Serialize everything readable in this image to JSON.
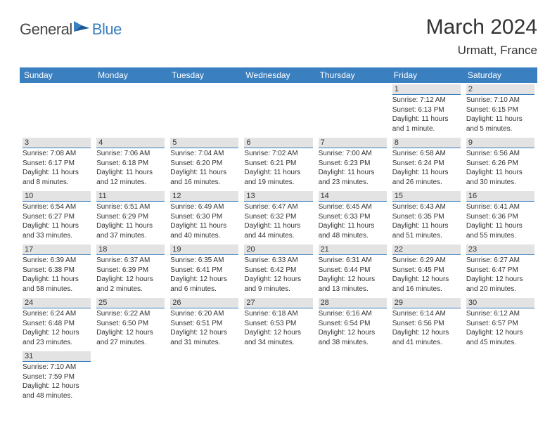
{
  "brand": {
    "text_general": "General",
    "text_blue": "Blue",
    "icon_color": "#3a7fbf",
    "general_color": "#464646"
  },
  "header": {
    "month_title": "March 2024",
    "location": "Urmatt, France"
  },
  "colors": {
    "header_bg": "#3a7fbf",
    "header_text": "#ffffff",
    "day_label_bg": "#e3e3e3",
    "day_label_border": "#3a7fbf",
    "text": "#333333",
    "background": "#ffffff"
  },
  "weekdays": [
    "Sunday",
    "Monday",
    "Tuesday",
    "Wednesday",
    "Thursday",
    "Friday",
    "Saturday"
  ],
  "weeks": [
    [
      null,
      null,
      null,
      null,
      null,
      {
        "n": "1",
        "sunrise": "Sunrise: 7:12 AM",
        "sunset": "Sunset: 6:13 PM",
        "daylight": "Daylight: 11 hours and 1 minute."
      },
      {
        "n": "2",
        "sunrise": "Sunrise: 7:10 AM",
        "sunset": "Sunset: 6:15 PM",
        "daylight": "Daylight: 11 hours and 5 minutes."
      }
    ],
    [
      {
        "n": "3",
        "sunrise": "Sunrise: 7:08 AM",
        "sunset": "Sunset: 6:17 PM",
        "daylight": "Daylight: 11 hours and 8 minutes."
      },
      {
        "n": "4",
        "sunrise": "Sunrise: 7:06 AM",
        "sunset": "Sunset: 6:18 PM",
        "daylight": "Daylight: 11 hours and 12 minutes."
      },
      {
        "n": "5",
        "sunrise": "Sunrise: 7:04 AM",
        "sunset": "Sunset: 6:20 PM",
        "daylight": "Daylight: 11 hours and 16 minutes."
      },
      {
        "n": "6",
        "sunrise": "Sunrise: 7:02 AM",
        "sunset": "Sunset: 6:21 PM",
        "daylight": "Daylight: 11 hours and 19 minutes."
      },
      {
        "n": "7",
        "sunrise": "Sunrise: 7:00 AM",
        "sunset": "Sunset: 6:23 PM",
        "daylight": "Daylight: 11 hours and 23 minutes."
      },
      {
        "n": "8",
        "sunrise": "Sunrise: 6:58 AM",
        "sunset": "Sunset: 6:24 PM",
        "daylight": "Daylight: 11 hours and 26 minutes."
      },
      {
        "n": "9",
        "sunrise": "Sunrise: 6:56 AM",
        "sunset": "Sunset: 6:26 PM",
        "daylight": "Daylight: 11 hours and 30 minutes."
      }
    ],
    [
      {
        "n": "10",
        "sunrise": "Sunrise: 6:54 AM",
        "sunset": "Sunset: 6:27 PM",
        "daylight": "Daylight: 11 hours and 33 minutes."
      },
      {
        "n": "11",
        "sunrise": "Sunrise: 6:51 AM",
        "sunset": "Sunset: 6:29 PM",
        "daylight": "Daylight: 11 hours and 37 minutes."
      },
      {
        "n": "12",
        "sunrise": "Sunrise: 6:49 AM",
        "sunset": "Sunset: 6:30 PM",
        "daylight": "Daylight: 11 hours and 40 minutes."
      },
      {
        "n": "13",
        "sunrise": "Sunrise: 6:47 AM",
        "sunset": "Sunset: 6:32 PM",
        "daylight": "Daylight: 11 hours and 44 minutes."
      },
      {
        "n": "14",
        "sunrise": "Sunrise: 6:45 AM",
        "sunset": "Sunset: 6:33 PM",
        "daylight": "Daylight: 11 hours and 48 minutes."
      },
      {
        "n": "15",
        "sunrise": "Sunrise: 6:43 AM",
        "sunset": "Sunset: 6:35 PM",
        "daylight": "Daylight: 11 hours and 51 minutes."
      },
      {
        "n": "16",
        "sunrise": "Sunrise: 6:41 AM",
        "sunset": "Sunset: 6:36 PM",
        "daylight": "Daylight: 11 hours and 55 minutes."
      }
    ],
    [
      {
        "n": "17",
        "sunrise": "Sunrise: 6:39 AM",
        "sunset": "Sunset: 6:38 PM",
        "daylight": "Daylight: 11 hours and 58 minutes."
      },
      {
        "n": "18",
        "sunrise": "Sunrise: 6:37 AM",
        "sunset": "Sunset: 6:39 PM",
        "daylight": "Daylight: 12 hours and 2 minutes."
      },
      {
        "n": "19",
        "sunrise": "Sunrise: 6:35 AM",
        "sunset": "Sunset: 6:41 PM",
        "daylight": "Daylight: 12 hours and 6 minutes."
      },
      {
        "n": "20",
        "sunrise": "Sunrise: 6:33 AM",
        "sunset": "Sunset: 6:42 PM",
        "daylight": "Daylight: 12 hours and 9 minutes."
      },
      {
        "n": "21",
        "sunrise": "Sunrise: 6:31 AM",
        "sunset": "Sunset: 6:44 PM",
        "daylight": "Daylight: 12 hours and 13 minutes."
      },
      {
        "n": "22",
        "sunrise": "Sunrise: 6:29 AM",
        "sunset": "Sunset: 6:45 PM",
        "daylight": "Daylight: 12 hours and 16 minutes."
      },
      {
        "n": "23",
        "sunrise": "Sunrise: 6:27 AM",
        "sunset": "Sunset: 6:47 PM",
        "daylight": "Daylight: 12 hours and 20 minutes."
      }
    ],
    [
      {
        "n": "24",
        "sunrise": "Sunrise: 6:24 AM",
        "sunset": "Sunset: 6:48 PM",
        "daylight": "Daylight: 12 hours and 23 minutes."
      },
      {
        "n": "25",
        "sunrise": "Sunrise: 6:22 AM",
        "sunset": "Sunset: 6:50 PM",
        "daylight": "Daylight: 12 hours and 27 minutes."
      },
      {
        "n": "26",
        "sunrise": "Sunrise: 6:20 AM",
        "sunset": "Sunset: 6:51 PM",
        "daylight": "Daylight: 12 hours and 31 minutes."
      },
      {
        "n": "27",
        "sunrise": "Sunrise: 6:18 AM",
        "sunset": "Sunset: 6:53 PM",
        "daylight": "Daylight: 12 hours and 34 minutes."
      },
      {
        "n": "28",
        "sunrise": "Sunrise: 6:16 AM",
        "sunset": "Sunset: 6:54 PM",
        "daylight": "Daylight: 12 hours and 38 minutes."
      },
      {
        "n": "29",
        "sunrise": "Sunrise: 6:14 AM",
        "sunset": "Sunset: 6:56 PM",
        "daylight": "Daylight: 12 hours and 41 minutes."
      },
      {
        "n": "30",
        "sunrise": "Sunrise: 6:12 AM",
        "sunset": "Sunset: 6:57 PM",
        "daylight": "Daylight: 12 hours and 45 minutes."
      }
    ],
    [
      {
        "n": "31",
        "sunrise": "Sunrise: 7:10 AM",
        "sunset": "Sunset: 7:59 PM",
        "daylight": "Daylight: 12 hours and 48 minutes."
      },
      null,
      null,
      null,
      null,
      null,
      null
    ]
  ]
}
